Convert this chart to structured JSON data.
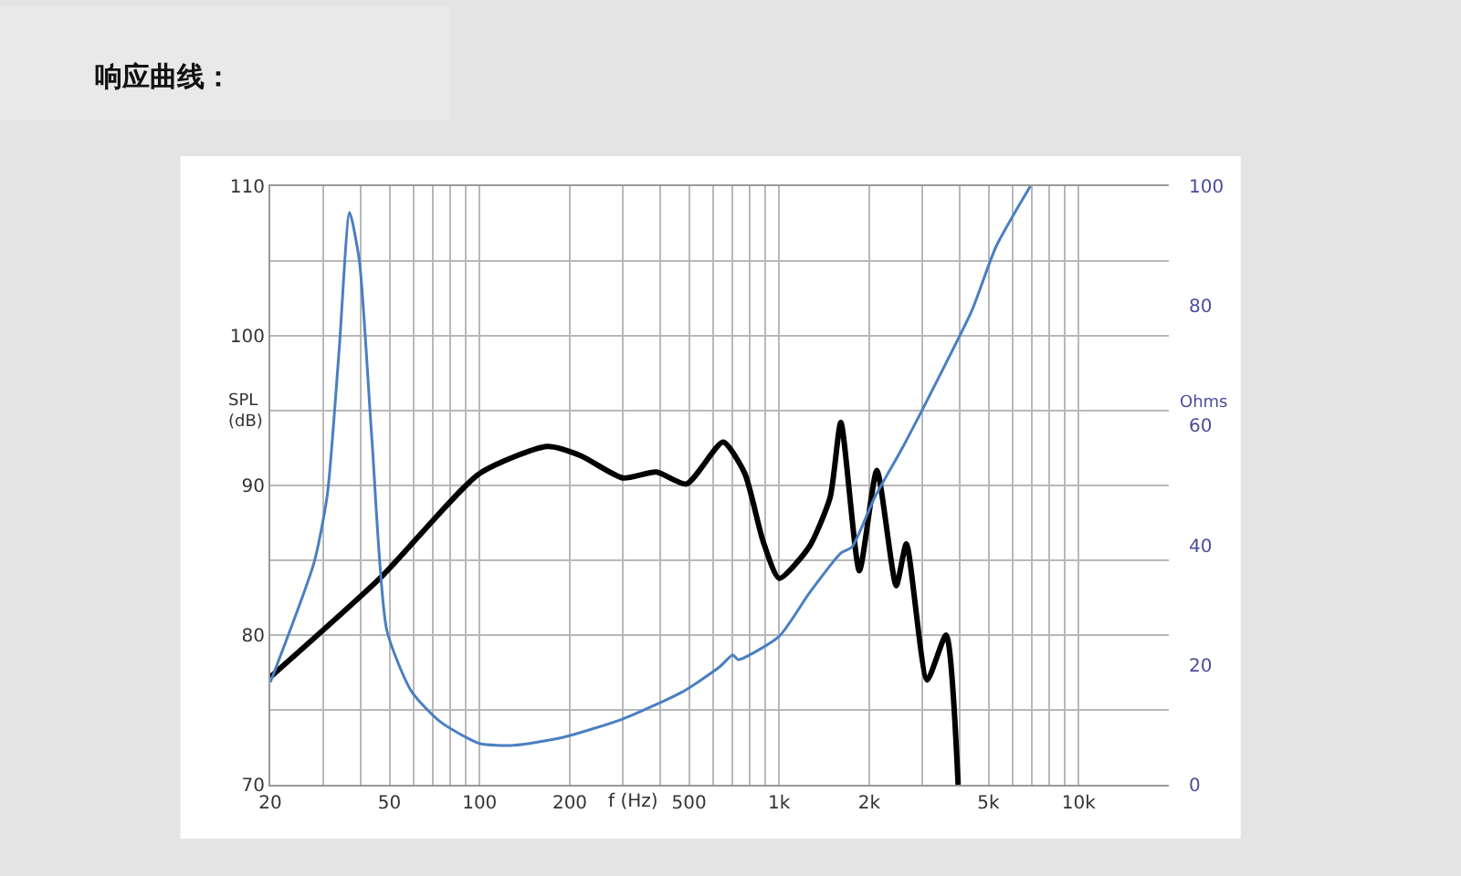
{
  "chart_data": {
    "type": "line",
    "title": "响应曲线：",
    "xlabel": "f (Hz)",
    "ylabel": "SPL\n(dB)",
    "y2label": "Ohms",
    "log": "x",
    "grid": true,
    "marker": "none",
    "line_style": "solid",
    "xlim": [
      20,
      20000
    ],
    "xticks": [
      20,
      {
        "value": 30,
        "label": null
      },
      {
        "value": 40,
        "label": null
      },
      50,
      {
        "value": 60,
        "label": null
      },
      {
        "value": 70,
        "label": null
      },
      {
        "value": 80,
        "label": null
      },
      {
        "value": 90,
        "label": null
      },
      100,
      200,
      {
        "value": 300,
        "label": null
      },
      {
        "value": 400,
        "label": null
      },
      500,
      {
        "value": 600,
        "label": null
      },
      {
        "value": 700,
        "label": null
      },
      {
        "value": 800,
        "label": null
      },
      {
        "value": 900,
        "label": null
      },
      {
        "value": 1000,
        "label": "1k"
      },
      {
        "value": 2000,
        "label": "2k"
      },
      {
        "value": 3000,
        "label": null
      },
      {
        "value": 4000,
        "label": null
      },
      {
        "value": 5000,
        "label": "5k"
      },
      {
        "value": 6000,
        "label": null
      },
      {
        "value": 7000,
        "label": null
      },
      {
        "value": 8000,
        "label": null
      },
      {
        "value": 9000,
        "label": null
      },
      {
        "value": 10000,
        "label": "10k"
      }
    ],
    "ylim": [
      70,
      110
    ],
    "yticks": [
      70,
      {
        "value": 75,
        "label": null
      },
      80,
      {
        "value": 85,
        "label": null
      },
      90,
      {
        "value": 95,
        "label": null
      },
      100,
      {
        "value": 105,
        "label": null
      },
      110
    ],
    "y2lim": [
      0,
      100
    ],
    "y2ticks": [
      0,
      20,
      40,
      60,
      80,
      100
    ],
    "series": [
      {
        "color": "#000000",
        "x": [
          20,
          47,
          100,
          168,
          217,
          301,
          389,
          491,
          650,
          768,
          883,
          1000,
          1260,
          1480,
          1607,
          1853,
          2120,
          2460,
          2660,
          3120,
          3610,
          3960
        ],
        "values": [
          77.2,
          83.9,
          90.8,
          92.6,
          92.0,
          90.5,
          90.9,
          90.1,
          92.9,
          90.8,
          86.3,
          83.8,
          85.9,
          89.2,
          94.2,
          84.3,
          91.0,
          83.3,
          86.1,
          77.0,
          80.0,
          70
        ]
      },
      {
        "color": "#4a7fc1",
        "axis": "y2",
        "x": [
          20,
          28,
          31,
          34,
          36.8,
          39.7,
          43.7,
          49,
          59.2,
          74,
          100,
          130,
          189,
          301,
          479,
          633,
          700,
          730,
          1000,
          1260,
          1607,
          1750,
          2080,
          2600,
          3400,
          4400,
          5300,
          6900
        ],
        "values": [
          17.1,
          37.1,
          48.4,
          73.0,
          95.6,
          87.4,
          57.6,
          25.8,
          15.6,
          10.5,
          6.9,
          6.6,
          7.9,
          11.0,
          15.6,
          19.7,
          21.7,
          20.9,
          24.8,
          32.0,
          38.7,
          39.7,
          47.9,
          56.6,
          67.9,
          79.2,
          89.9,
          100
        ]
      }
    ]
  }
}
